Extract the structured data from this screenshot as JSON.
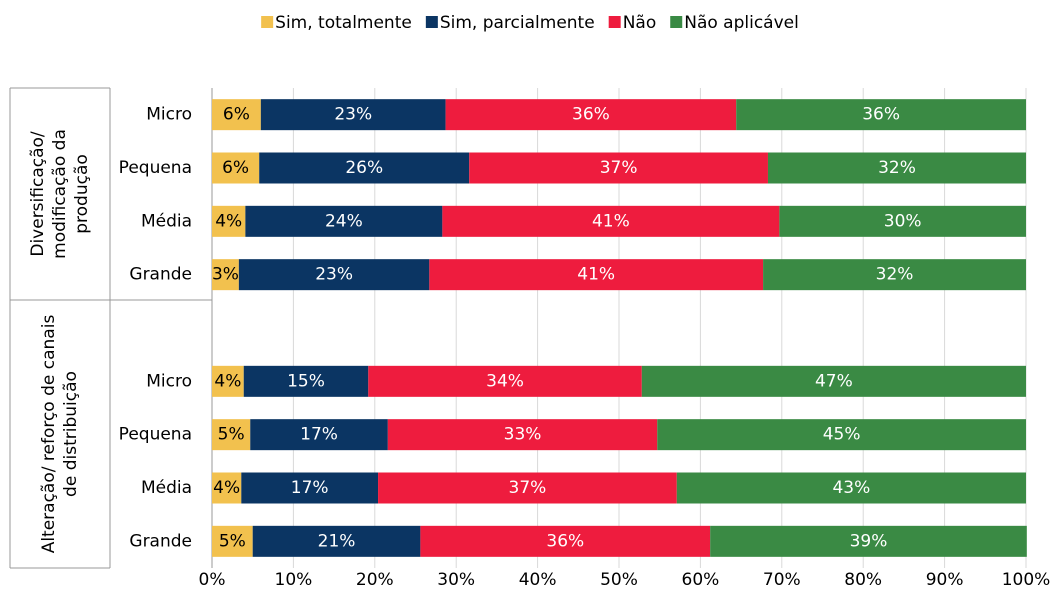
{
  "chart_data": {
    "type": "stacked_bar_horizontal",
    "groups": [
      {
        "label": [
          "Diversificação/",
          "modificação da",
          "produção"
        ],
        "categories": [
          "Micro",
          "Pequena",
          "Média",
          "Grande"
        ]
      },
      {
        "label": [
          "Alteração/ reforço de canais",
          "de distribuição"
        ],
        "categories": [
          "Micro",
          "Pequena",
          "Média",
          "Grande"
        ]
      }
    ],
    "series": [
      {
        "name": "Sim, totalmente",
        "color": "#f2c14e",
        "text_color": "#000000",
        "values": [
          6.0,
          5.8,
          4.1,
          3.3,
          3.9,
          4.7,
          3.6,
          5.0
        ],
        "value_labels": [
          "6%",
          "6%",
          "4%",
          "3%",
          "4%",
          "5%",
          "4%",
          "5%"
        ]
      },
      {
        "name": "Sim, parcialmente",
        "color": "#0b3563",
        "text_color": "#ffffff",
        "values": [
          22.7,
          25.8,
          24.2,
          23.4,
          15.3,
          16.9,
          16.8,
          20.6
        ],
        "value_labels": [
          "23%",
          "26%",
          "24%",
          "23%",
          "15%",
          "17%",
          "17%",
          "21%"
        ]
      },
      {
        "name": "Não",
        "color": "#ee1c3e",
        "text_color": "#ffffff",
        "values": [
          35.7,
          36.7,
          41.4,
          41.0,
          33.6,
          33.1,
          36.7,
          35.6
        ],
        "value_labels": [
          "36%",
          "37%",
          "41%",
          "41%",
          "34%",
          "33%",
          "37%",
          "36%"
        ]
      },
      {
        "name": "Não aplicável",
        "color": "#3a8a44",
        "text_color": "#ffffff",
        "values": [
          35.6,
          31.7,
          30.3,
          32.3,
          47.2,
          45.3,
          42.9,
          38.9
        ],
        "value_labels": [
          "36%",
          "32%",
          "30%",
          "32%",
          "47%",
          "45%",
          "43%",
          "39%"
        ]
      }
    ],
    "xlim": [
      0,
      100
    ],
    "xticks": [
      {
        "value": 0,
        "label": "0%"
      },
      {
        "value": 10,
        "label": "10%"
      },
      {
        "value": 20,
        "label": "20%"
      },
      {
        "value": 30,
        "label": "30%"
      },
      {
        "value": 40,
        "label": "40%"
      },
      {
        "value": 50,
        "label": "50%"
      },
      {
        "value": 60,
        "label": "60%"
      },
      {
        "value": 70,
        "label": "70%"
      },
      {
        "value": 80,
        "label": "80%"
      },
      {
        "value": 90,
        "label": "90%"
      },
      {
        "value": 100,
        "label": "100%"
      }
    ],
    "grid": true,
    "legend": "top"
  }
}
